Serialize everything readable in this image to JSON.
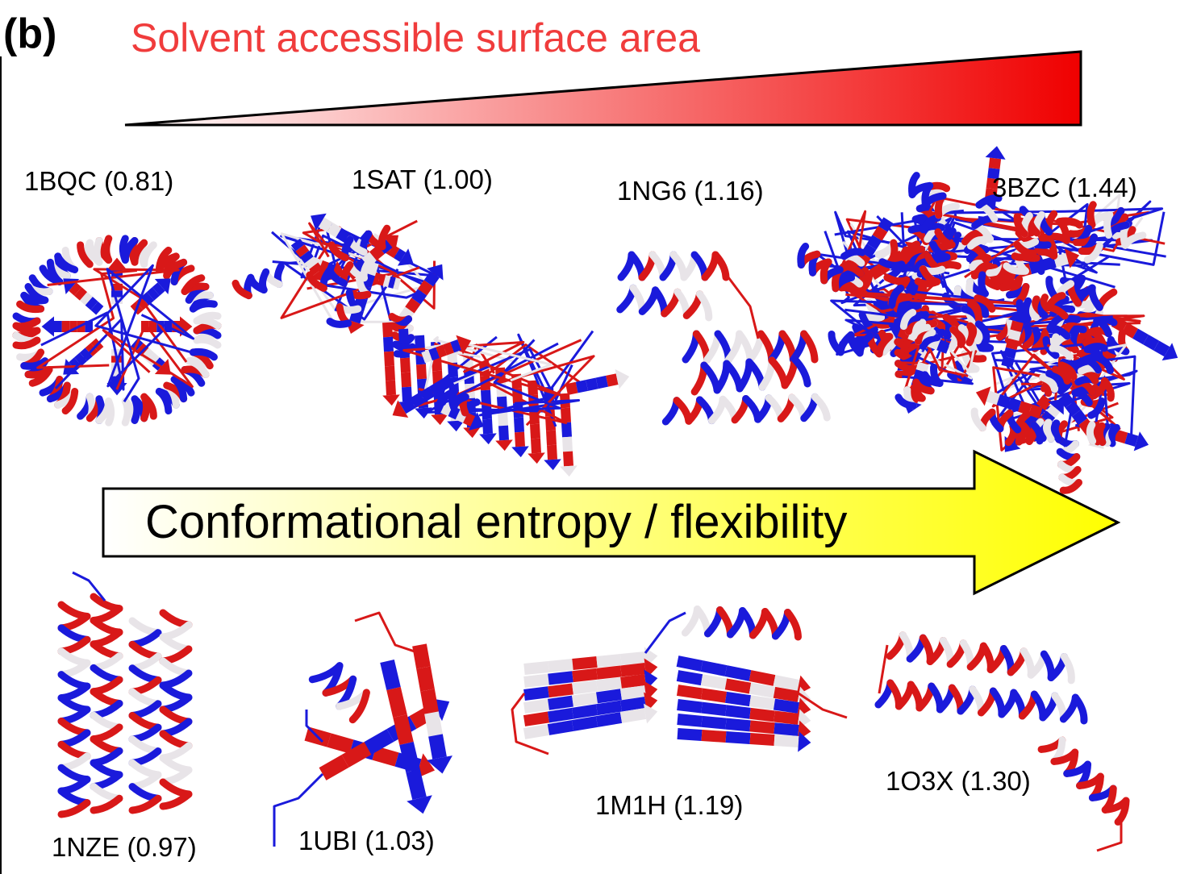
{
  "panel_label": "(b)",
  "sasa_title": "Solvent accessible surface area",
  "entropy_label": "Conformational entropy / flexibility",
  "colors": {
    "sasa_title": "#f03c3c",
    "wedge_start": "#ffffff",
    "wedge_end": "#f00000",
    "arrow_start": "#ffffff",
    "arrow_end": "#ffff00",
    "helix_blue": "#1a1adb",
    "helix_red": "#d81818",
    "helix_white": "#e8e4e8"
  },
  "proteins": [
    {
      "id": "1bqc",
      "label": "1BQC (0.81)"
    },
    {
      "id": "1sat",
      "label": "1SAT (1.00)"
    },
    {
      "id": "1ng6",
      "label": "1NG6 (1.16)"
    },
    {
      "id": "3bzc",
      "label": "3BZC (1.44)"
    },
    {
      "id": "1nze",
      "label": "1NZE (0.97)"
    },
    {
      "id": "1ubi",
      "label": "1UBI (1.03)"
    },
    {
      "id": "1m1h",
      "label": "1M1H (1.19)"
    },
    {
      "id": "1o3x",
      "label": "1O3X (1.30)"
    }
  ]
}
